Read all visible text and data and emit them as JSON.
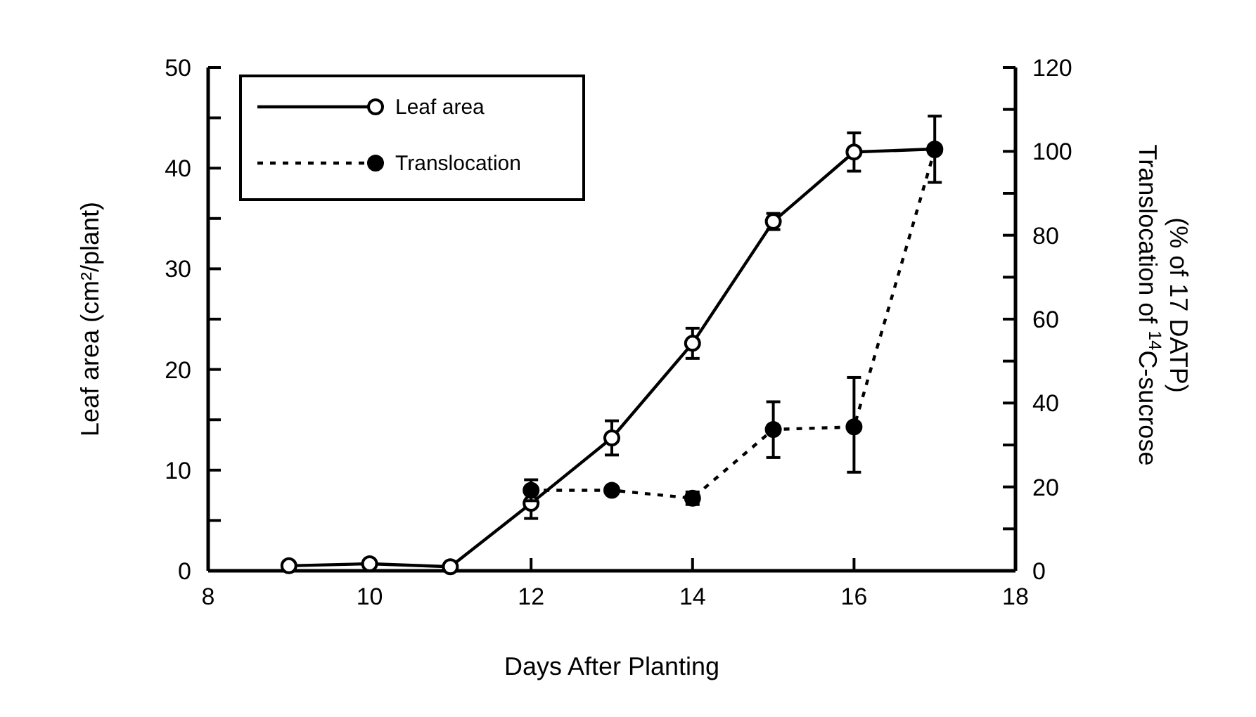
{
  "chart_data": {
    "type": "line",
    "xlabel": "Days After Planting",
    "ylabel": "Leaf area (cm²/plant)",
    "y2label": "Translocation of $^{14}$C-sucrose\n(% of 17 DATP)",
    "xlim": [
      8,
      18
    ],
    "xticks": [
      8,
      10,
      12,
      14,
      16,
      18
    ],
    "ylim": [
      0,
      50
    ],
    "yticks": [
      0,
      {
        "value": 5,
        "label": null
      },
      10,
      {
        "value": 15,
        "label": null
      },
      20,
      {
        "value": 25,
        "label": null
      },
      30,
      {
        "value": 35,
        "label": null
      },
      40,
      {
        "value": 45,
        "label": null
      },
      50
    ],
    "y2lim": [
      0,
      120
    ],
    "y2ticks": [
      0,
      {
        "value": 10,
        "label": null
      },
      20,
      {
        "value": 30,
        "label": null
      },
      40,
      {
        "value": 50,
        "label": null
      },
      60,
      {
        "value": 70,
        "label": null
      },
      80,
      {
        "value": 90,
        "label": null
      },
      100,
      {
        "value": 110,
        "label": null
      },
      120
    ],
    "legend": "top left",
    "grid": false,
    "series": [
      {
        "name": "Leaf area",
        "color": "#000000",
        "marker": "circle",
        "line_style": "solid",
        "x": [
          9,
          10,
          11,
          12,
          13,
          14,
          15,
          16,
          17
        ],
        "values": [
          0.5,
          0.7,
          0.4,
          6.7,
          13.2,
          22.6,
          34.7,
          41.6,
          41.9
        ],
        "errors": [
          null,
          null,
          null,
          1.5,
          1.7,
          1.5,
          0.8,
          1.9,
          null
        ]
      },
      {
        "name": "Translocation",
        "color": "#000000",
        "marker": "circle",
        "line_style": "dashed",
        "axis": "y2",
        "x": [
          12,
          13,
          14,
          15,
          16,
          17
        ],
        "values": [
          19.2,
          19.2,
          17.3,
          33.7,
          34.3,
          100.4
        ],
        "errors": [
          2.5,
          null,
          1.5,
          [
            27,
            40.3
          ],
          [
            23.5,
            46.1
          ],
          [
            92.6,
            108.4
          ]
        ]
      }
    ]
  }
}
